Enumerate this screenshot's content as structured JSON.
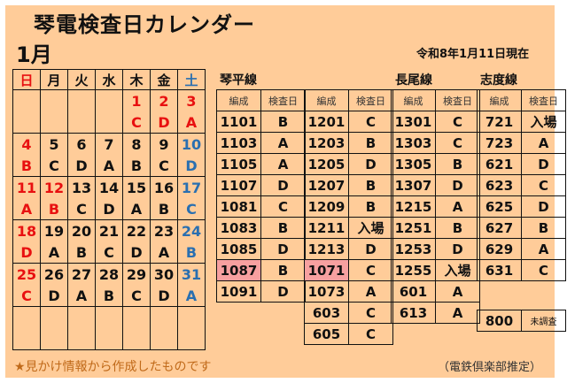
{
  "title": "琴電検査日カレンダー",
  "month": "1月",
  "as_of": "令和8年1月11日現在",
  "calendar": {
    "weekdays": [
      "日",
      "月",
      "火",
      "水",
      "木",
      "金",
      "土"
    ],
    "weeks": [
      [
        [
          "",
          ""
        ],
        [
          "",
          ""
        ],
        [
          "",
          ""
        ],
        [
          "",
          ""
        ],
        [
          "1",
          "C"
        ],
        [
          "2",
          "D"
        ],
        [
          "3",
          "A"
        ]
      ],
      [
        [
          "4",
          "B"
        ],
        [
          "5",
          "C"
        ],
        [
          "6",
          "D"
        ],
        [
          "7",
          "A"
        ],
        [
          "8",
          "B"
        ],
        [
          "9",
          "C"
        ],
        [
          "10",
          "D"
        ]
      ],
      [
        [
          "11",
          "A"
        ],
        [
          "12",
          "B"
        ],
        [
          "13",
          "C"
        ],
        [
          "14",
          "D"
        ],
        [
          "15",
          "A"
        ],
        [
          "16",
          "B"
        ],
        [
          "17",
          "C"
        ]
      ],
      [
        [
          "18",
          "D"
        ],
        [
          "19",
          "A"
        ],
        [
          "20",
          "B"
        ],
        [
          "21",
          "C"
        ],
        [
          "22",
          "D"
        ],
        [
          "23",
          "A"
        ],
        [
          "24",
          "B"
        ]
      ],
      [
        [
          "25",
          "C"
        ],
        [
          "26",
          "D"
        ],
        [
          "27",
          "A"
        ],
        [
          "28",
          "B"
        ],
        [
          "29",
          "C"
        ],
        [
          "30",
          "D"
        ],
        [
          "31",
          "A"
        ]
      ],
      [
        [
          "",
          ""
        ],
        [
          "",
          ""
        ],
        [
          "",
          ""
        ],
        [
          "",
          ""
        ],
        [
          "",
          ""
        ],
        [
          "",
          ""
        ],
        [
          "",
          ""
        ]
      ]
    ],
    "holiday_days": [
      "1",
      "2",
      "3",
      "11",
      "12"
    ],
    "colors": {
      "sunday_holiday": "#e81010",
      "saturday": "#2a6fb0"
    }
  },
  "headers": {
    "formation": "編成",
    "inspection_day": "検査日"
  },
  "sections": {
    "kotohira": "琴平線",
    "nagao": "長尾線",
    "shido": "志度線"
  },
  "tables": [
    {
      "rows": [
        [
          "1101",
          "B"
        ],
        [
          "1103",
          "A"
        ],
        [
          "1105",
          "A"
        ],
        [
          "1107",
          "D"
        ],
        [
          "1081",
          "C"
        ],
        [
          "1083",
          "B"
        ],
        [
          "1085",
          "D"
        ],
        [
          "1087",
          "B"
        ],
        [
          "1091",
          "D"
        ]
      ],
      "highlight": "1087"
    },
    {
      "rows": [
        [
          "1201",
          "C"
        ],
        [
          "1203",
          "B"
        ],
        [
          "1205",
          "D"
        ],
        [
          "1207",
          "B"
        ],
        [
          "1209",
          "B"
        ],
        [
          "1211",
          "入場"
        ],
        [
          "1213",
          "D"
        ],
        [
          "1071",
          "C"
        ],
        [
          "1073",
          "A"
        ],
        [
          "603",
          "C"
        ],
        [
          "605",
          "C"
        ]
      ],
      "highlight": "1071"
    },
    {
      "rows": [
        [
          "1301",
          "C"
        ],
        [
          "1303",
          "C"
        ],
        [
          "1305",
          "B"
        ],
        [
          "1307",
          "D"
        ],
        [
          "1215",
          "A"
        ],
        [
          "1251",
          "B"
        ],
        [
          "1253",
          "D"
        ],
        [
          "1255",
          "入場"
        ],
        [
          "601",
          "A"
        ],
        [
          "613",
          "A"
        ]
      ]
    },
    {
      "rows": [
        [
          "721",
          "入場"
        ],
        [
          "723",
          "A"
        ],
        [
          "621",
          "D"
        ],
        [
          "623",
          "C"
        ],
        [
          "625",
          "D"
        ],
        [
          "627",
          "B"
        ],
        [
          "629",
          "A"
        ],
        [
          "631",
          "C"
        ]
      ]
    }
  ],
  "extra": {
    "formation": "800",
    "status": "未調査"
  },
  "highlight_color": "#F7A0A0",
  "background_color": "#FFCC99",
  "note": "★見かけ情報から作成したものです",
  "credit": "（電鉄倶楽部推定）"
}
